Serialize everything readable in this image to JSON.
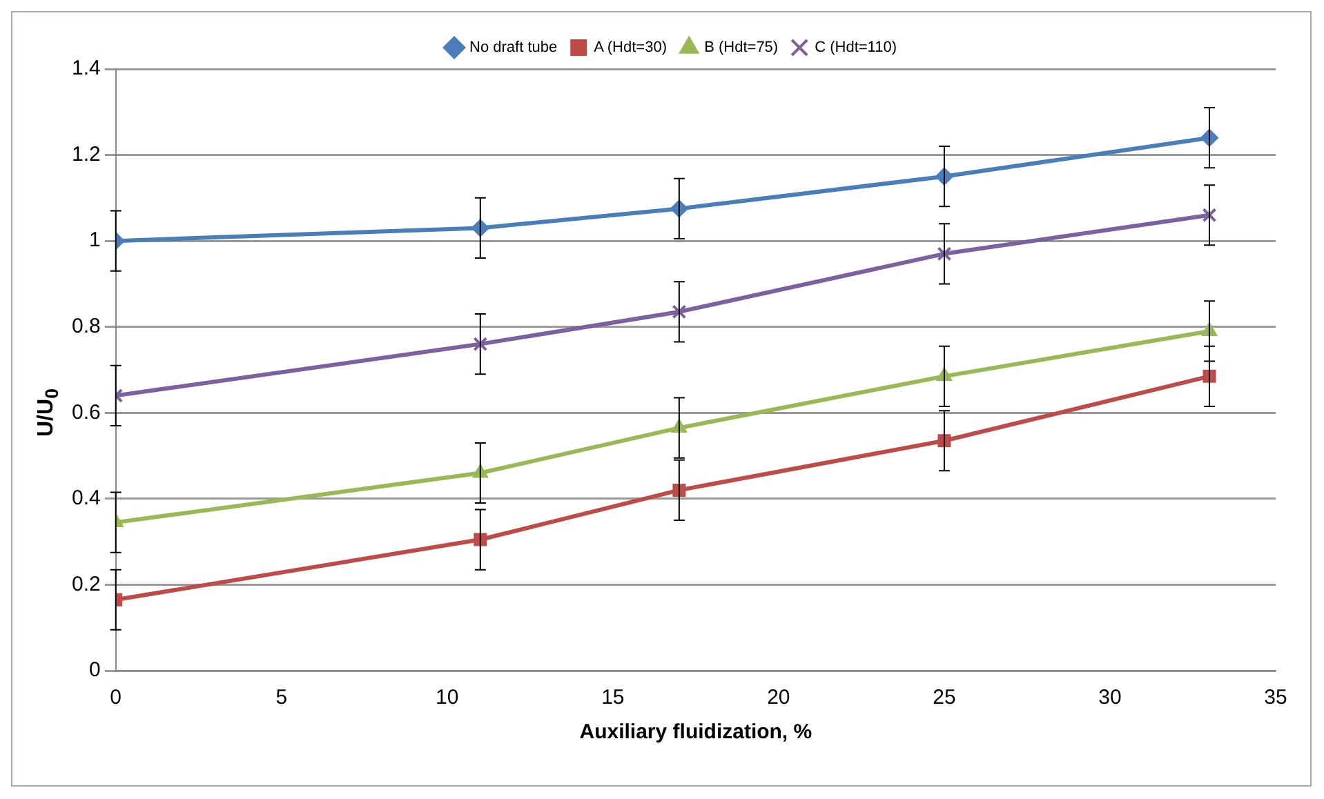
{
  "chart_data": {
    "type": "line",
    "xlabel": "Auxiliary fluidization, %",
    "ylabel": "U/U$_{0}$",
    "x": [
      0,
      11,
      17,
      25,
      33
    ],
    "series": [
      {
        "name": "No draft tube",
        "color": "#4a7ebb",
        "marker": "diamond",
        "values": [
          1.0,
          1.03,
          1.075,
          1.15,
          1.24
        ],
        "errors": [
          0.07,
          0.07,
          0.07,
          0.07,
          0.07
        ]
      },
      {
        "name": "A (Hdt=30)",
        "color": "#be4b48",
        "marker": "square",
        "values": [
          0.165,
          0.305,
          0.42,
          0.535,
          0.685
        ],
        "errors": [
          0.07,
          0.07,
          0.07,
          0.07,
          0.07
        ]
      },
      {
        "name": "B (Hdt=75)",
        "color": "#98b954",
        "marker": "triangle",
        "values": [
          0.345,
          0.46,
          0.565,
          0.685,
          0.79
        ],
        "errors": [
          0.07,
          0.07,
          0.07,
          0.07,
          0.07
        ]
      },
      {
        "name": "C (Hdt=110)",
        "color": "#7d60a0",
        "marker": "cross",
        "values": [
          0.64,
          0.76,
          0.835,
          0.97,
          1.06
        ],
        "errors": [
          0.07,
          0.07,
          0.07,
          0.07,
          0.07
        ]
      }
    ],
    "xlim": [
      0,
      35
    ],
    "xticks": [
      0,
      5,
      10,
      15,
      20,
      25,
      30,
      35
    ],
    "ylim": [
      0,
      1.4
    ],
    "yticks": [
      0,
      0.2,
      0.4,
      0.6,
      0.8,
      1,
      1.2,
      1.4
    ],
    "grid": "y",
    "legend": "top",
    "line_style": "solid"
  }
}
